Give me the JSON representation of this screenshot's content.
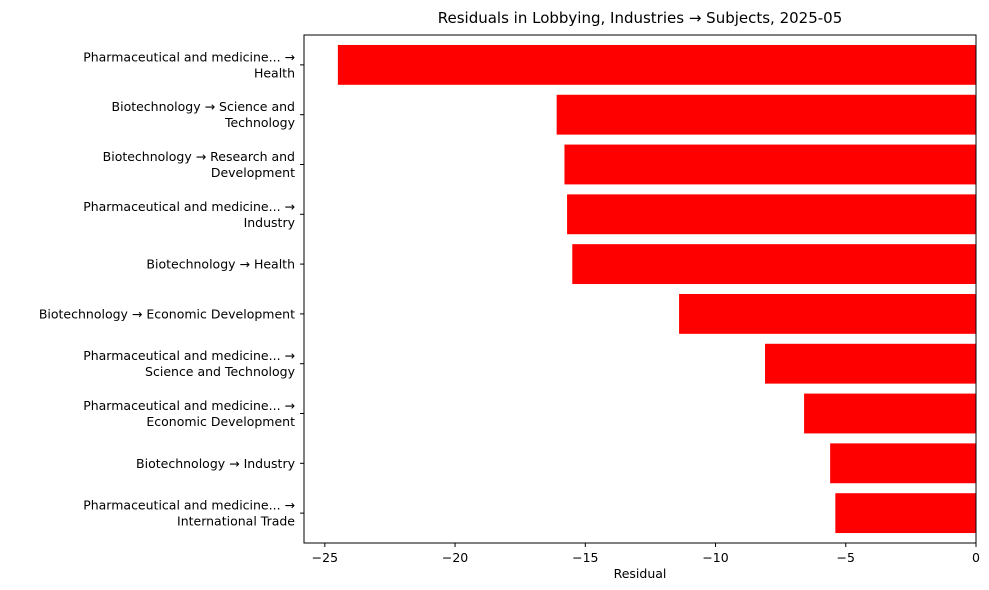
{
  "chart_data": {
    "type": "bar",
    "orientation": "horizontal",
    "title": "Residuals in Lobbying, Industries → Subjects, 2025-05",
    "xlabel": "Residual",
    "ylabel": "",
    "xlim": [
      -25.8,
      0
    ],
    "xticks": [
      -25,
      -20,
      -15,
      -10,
      -5,
      0
    ],
    "xtick_labels": [
      "−25",
      "−20",
      "−15",
      "−10",
      "−5",
      "0"
    ],
    "bar_color": "#ff0000",
    "grid": false,
    "categories": [
      [
        "Pharmaceutical and medicine... →",
        "Health"
      ],
      [
        "Biotechnology → Science and",
        "Technology"
      ],
      [
        "Biotechnology → Research and",
        "Development"
      ],
      [
        "Pharmaceutical and medicine... →",
        "Industry"
      ],
      [
        "Biotechnology → Health"
      ],
      [
        "Biotechnology → Economic Development"
      ],
      [
        "Pharmaceutical and medicine... →",
        "Science and Technology"
      ],
      [
        "Pharmaceutical and medicine... →",
        "Economic Development"
      ],
      [
        "Biotechnology → Industry"
      ],
      [
        "Pharmaceutical and medicine... →",
        "International Trade"
      ]
    ],
    "values": [
      -24.5,
      -16.1,
      -15.8,
      -15.7,
      -15.5,
      -11.4,
      -8.1,
      -6.6,
      -5.6,
      -5.4
    ]
  }
}
